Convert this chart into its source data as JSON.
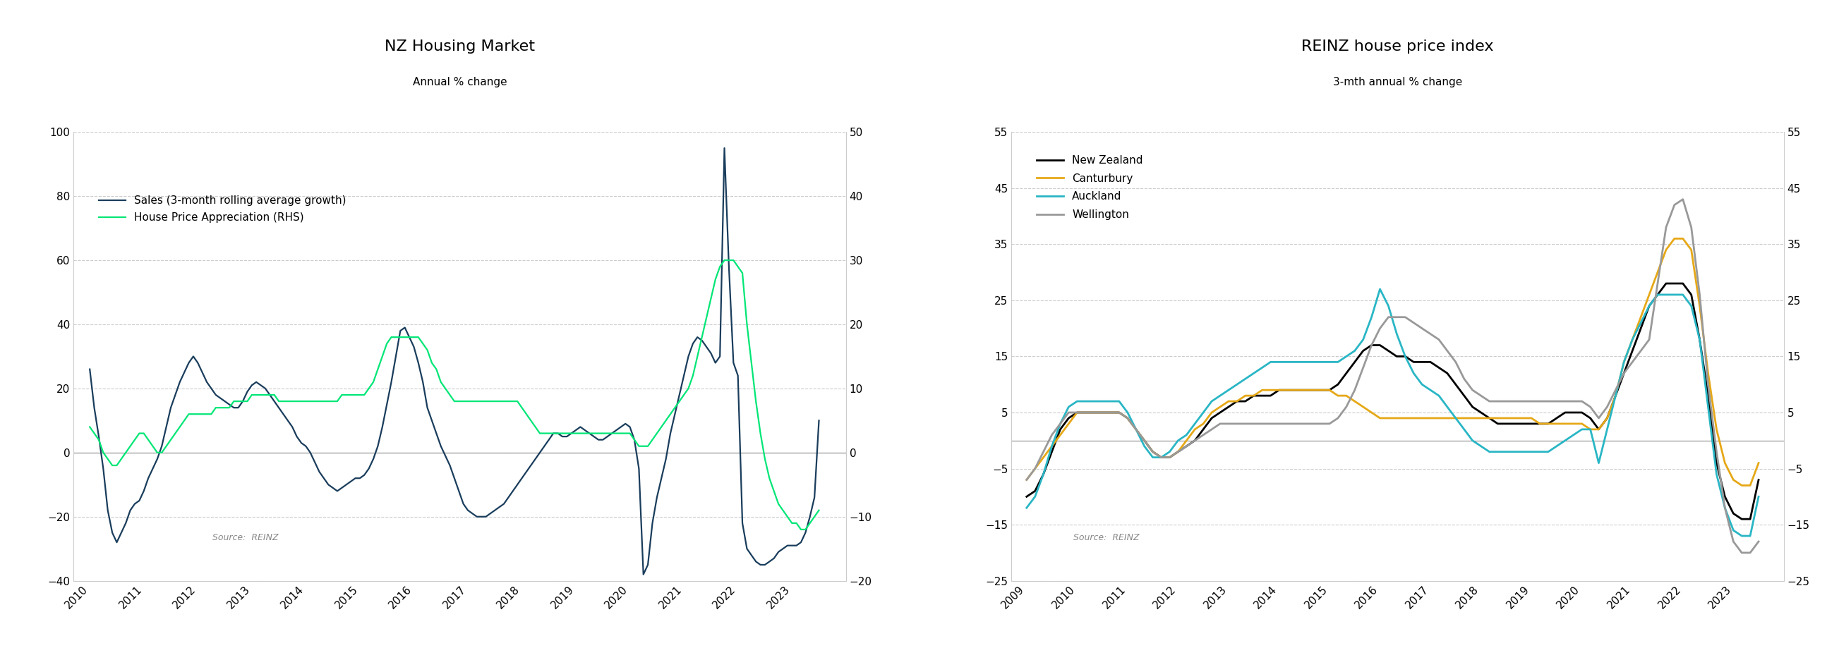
{
  "chart1": {
    "title": "NZ Housing Market",
    "subtitle": "Annual % change",
    "left_ylim": [
      -40,
      100
    ],
    "right_ylim": [
      -20,
      50
    ],
    "left_yticks": [
      -40,
      -20,
      0,
      20,
      40,
      60,
      80,
      100
    ],
    "right_yticks": [
      -20,
      -10,
      0,
      10,
      20,
      30,
      40,
      50
    ],
    "sales_color": "#1a3d5c",
    "hpa_color": "#00e676",
    "legend": [
      "Sales (3-month rolling average growth)",
      "House Price Appreciation (RHS)"
    ],
    "source": "Source:  REINZ",
    "sales_x": [
      2010.0,
      2010.083,
      2010.167,
      2010.25,
      2010.333,
      2010.417,
      2010.5,
      2010.583,
      2010.667,
      2010.75,
      2010.833,
      2010.917,
      2011.0,
      2011.083,
      2011.167,
      2011.25,
      2011.333,
      2011.417,
      2011.5,
      2011.583,
      2011.667,
      2011.75,
      2011.833,
      2011.917,
      2012.0,
      2012.083,
      2012.167,
      2012.25,
      2012.333,
      2012.417,
      2012.5,
      2012.583,
      2012.667,
      2012.75,
      2012.833,
      2012.917,
      2013.0,
      2013.083,
      2013.167,
      2013.25,
      2013.333,
      2013.417,
      2013.5,
      2013.583,
      2013.667,
      2013.75,
      2013.833,
      2013.917,
      2014.0,
      2014.083,
      2014.167,
      2014.25,
      2014.333,
      2014.417,
      2014.5,
      2014.583,
      2014.667,
      2014.75,
      2014.833,
      2014.917,
      2015.0,
      2015.083,
      2015.167,
      2015.25,
      2015.333,
      2015.417,
      2015.5,
      2015.583,
      2015.667,
      2015.75,
      2015.833,
      2015.917,
      2016.0,
      2016.083,
      2016.167,
      2016.25,
      2016.333,
      2016.417,
      2016.5,
      2016.583,
      2016.667,
      2016.75,
      2016.833,
      2016.917,
      2017.0,
      2017.083,
      2017.167,
      2017.25,
      2017.333,
      2017.417,
      2017.5,
      2017.583,
      2017.667,
      2017.75,
      2017.833,
      2017.917,
      2018.0,
      2018.083,
      2018.167,
      2018.25,
      2018.333,
      2018.417,
      2018.5,
      2018.583,
      2018.667,
      2018.75,
      2018.833,
      2018.917,
      2019.0,
      2019.083,
      2019.167,
      2019.25,
      2019.333,
      2019.417,
      2019.5,
      2019.583,
      2019.667,
      2019.75,
      2019.833,
      2019.917,
      2020.0,
      2020.083,
      2020.167,
      2020.25,
      2020.333,
      2020.417,
      2020.5,
      2020.583,
      2020.667,
      2020.75,
      2020.833,
      2020.917,
      2021.0,
      2021.083,
      2021.167,
      2021.25,
      2021.333,
      2021.417,
      2021.5,
      2021.583,
      2021.667,
      2021.75,
      2021.833,
      2021.917,
      2022.0,
      2022.083,
      2022.167,
      2022.25,
      2022.333,
      2022.417,
      2022.5,
      2022.583,
      2022.667,
      2022.75,
      2022.833,
      2022.917,
      2023.0,
      2023.083,
      2023.167,
      2023.25,
      2023.333,
      2023.417,
      2023.5
    ],
    "sales_y": [
      26,
      14,
      5,
      -5,
      -18,
      -25,
      -28,
      -25,
      -22,
      -18,
      -16,
      -15,
      -12,
      -8,
      -5,
      -2,
      2,
      8,
      14,
      18,
      22,
      25,
      28,
      30,
      28,
      25,
      22,
      20,
      18,
      17,
      16,
      15,
      14,
      14,
      16,
      19,
      21,
      22,
      21,
      20,
      18,
      16,
      14,
      12,
      10,
      8,
      5,
      3,
      2,
      0,
      -3,
      -6,
      -8,
      -10,
      -11,
      -12,
      -11,
      -10,
      -9,
      -8,
      -8,
      -7,
      -5,
      -2,
      2,
      8,
      15,
      22,
      30,
      38,
      39,
      36,
      33,
      28,
      22,
      14,
      10,
      6,
      2,
      -1,
      -4,
      -8,
      -12,
      -16,
      -18,
      -19,
      -20,
      -20,
      -20,
      -19,
      -18,
      -17,
      -16,
      -14,
      -12,
      -10,
      -8,
      -6,
      -4,
      -2,
      0,
      2,
      4,
      6,
      6,
      5,
      5,
      6,
      7,
      8,
      7,
      6,
      5,
      4,
      4,
      5,
      6,
      7,
      8,
      9,
      8,
      4,
      -5,
      -38,
      -35,
      -22,
      -14,
      -8,
      -2,
      6,
      12,
      18,
      24,
      30,
      34,
      36,
      35,
      33,
      31,
      28,
      30,
      95,
      58,
      28,
      24,
      -22,
      -30,
      -32,
      -34,
      -35,
      -35,
      -34,
      -33,
      -31,
      -30,
      -29,
      -29,
      -29,
      -28,
      -25,
      -20,
      -14,
      10
    ],
    "hpa_x": [
      2010.0,
      2010.083,
      2010.167,
      2010.25,
      2010.333,
      2010.417,
      2010.5,
      2010.583,
      2010.667,
      2010.75,
      2010.833,
      2010.917,
      2011.0,
      2011.083,
      2011.167,
      2011.25,
      2011.333,
      2011.417,
      2011.5,
      2011.583,
      2011.667,
      2011.75,
      2011.833,
      2011.917,
      2012.0,
      2012.083,
      2012.167,
      2012.25,
      2012.333,
      2012.417,
      2012.5,
      2012.583,
      2012.667,
      2012.75,
      2012.833,
      2012.917,
      2013.0,
      2013.083,
      2013.167,
      2013.25,
      2013.333,
      2013.417,
      2013.5,
      2013.583,
      2013.667,
      2013.75,
      2013.833,
      2013.917,
      2014.0,
      2014.083,
      2014.167,
      2014.25,
      2014.333,
      2014.417,
      2014.5,
      2014.583,
      2014.667,
      2014.75,
      2014.833,
      2014.917,
      2015.0,
      2015.083,
      2015.167,
      2015.25,
      2015.333,
      2015.417,
      2015.5,
      2015.583,
      2015.667,
      2015.75,
      2015.833,
      2015.917,
      2016.0,
      2016.083,
      2016.167,
      2016.25,
      2016.333,
      2016.417,
      2016.5,
      2016.583,
      2016.667,
      2016.75,
      2016.833,
      2016.917,
      2017.0,
      2017.083,
      2017.167,
      2017.25,
      2017.333,
      2017.417,
      2017.5,
      2017.583,
      2017.667,
      2017.75,
      2017.833,
      2017.917,
      2018.0,
      2018.083,
      2018.167,
      2018.25,
      2018.333,
      2018.417,
      2018.5,
      2018.583,
      2018.667,
      2018.75,
      2018.833,
      2018.917,
      2019.0,
      2019.083,
      2019.167,
      2019.25,
      2019.333,
      2019.417,
      2019.5,
      2019.583,
      2019.667,
      2019.75,
      2019.833,
      2019.917,
      2020.0,
      2020.083,
      2020.167,
      2020.25,
      2020.333,
      2020.417,
      2020.5,
      2020.583,
      2020.667,
      2020.75,
      2020.833,
      2020.917,
      2021.0,
      2021.083,
      2021.167,
      2021.25,
      2021.333,
      2021.417,
      2021.5,
      2021.583,
      2021.667,
      2021.75,
      2021.833,
      2021.917,
      2022.0,
      2022.083,
      2022.167,
      2022.25,
      2022.333,
      2022.417,
      2022.5,
      2022.583,
      2022.667,
      2022.75,
      2022.833,
      2022.917,
      2023.0,
      2023.083,
      2023.167,
      2023.25,
      2023.333,
      2023.417,
      2023.5
    ],
    "hpa_y": [
      4,
      3,
      2,
      0,
      -1,
      -2,
      -2,
      -1,
      0,
      1,
      2,
      3,
      3,
      2,
      1,
      0,
      0,
      1,
      2,
      3,
      4,
      5,
      6,
      6,
      6,
      6,
      6,
      6,
      7,
      7,
      7,
      7,
      8,
      8,
      8,
      8,
      9,
      9,
      9,
      9,
      9,
      9,
      8,
      8,
      8,
      8,
      8,
      8,
      8,
      8,
      8,
      8,
      8,
      8,
      8,
      8,
      9,
      9,
      9,
      9,
      9,
      9,
      10,
      11,
      13,
      15,
      17,
      18,
      18,
      18,
      18,
      18,
      18,
      18,
      17,
      16,
      14,
      13,
      11,
      10,
      9,
      8,
      8,
      8,
      8,
      8,
      8,
      8,
      8,
      8,
      8,
      8,
      8,
      8,
      8,
      8,
      7,
      6,
      5,
      4,
      3,
      3,
      3,
      3,
      3,
      3,
      3,
      3,
      3,
      3,
      3,
      3,
      3,
      3,
      3,
      3,
      3,
      3,
      3,
      3,
      3,
      2,
      1,
      1,
      1,
      2,
      3,
      4,
      5,
      6,
      7,
      8,
      9,
      10,
      12,
      15,
      18,
      21,
      24,
      27,
      29,
      30,
      30,
      30,
      29,
      28,
      20,
      14,
      8,
      3,
      -1,
      -4,
      -6,
      -8,
      -9,
      -10,
      -11,
      -11,
      -12,
      -12,
      -11,
      -10,
      -9
    ]
  },
  "chart2": {
    "title": "REINZ house price index",
    "subtitle": "3-mth annual % change",
    "ylim": [
      -25,
      55
    ],
    "yticks": [
      -25,
      -15,
      -5,
      5,
      15,
      25,
      35,
      45,
      55
    ],
    "nz_color": "#000000",
    "cant_color": "#e6a817",
    "auckland_color": "#29b6c5",
    "welly_color": "#999999",
    "legend": [
      "New Zealand",
      "Canturbury",
      "Auckland",
      "Wellington"
    ],
    "source": "Source:  REINZ",
    "nz_x": [
      2009.0,
      2009.167,
      2009.333,
      2009.5,
      2009.667,
      2009.833,
      2010.0,
      2010.167,
      2010.333,
      2010.5,
      2010.667,
      2010.833,
      2011.0,
      2011.167,
      2011.333,
      2011.5,
      2011.667,
      2011.833,
      2012.0,
      2012.167,
      2012.333,
      2012.5,
      2012.667,
      2012.833,
      2013.0,
      2013.167,
      2013.333,
      2013.5,
      2013.667,
      2013.833,
      2014.0,
      2014.167,
      2014.333,
      2014.5,
      2014.667,
      2014.833,
      2015.0,
      2015.167,
      2015.333,
      2015.5,
      2015.667,
      2015.833,
      2016.0,
      2016.167,
      2016.333,
      2016.5,
      2016.667,
      2016.833,
      2017.0,
      2017.167,
      2017.333,
      2017.5,
      2017.667,
      2017.833,
      2018.0,
      2018.167,
      2018.333,
      2018.5,
      2018.667,
      2018.833,
      2019.0,
      2019.167,
      2019.333,
      2019.5,
      2019.667,
      2019.833,
      2020.0,
      2020.167,
      2020.333,
      2020.5,
      2020.667,
      2020.833,
      2021.0,
      2021.167,
      2021.333,
      2021.5,
      2021.667,
      2021.833,
      2022.0,
      2022.167,
      2022.333,
      2022.5,
      2022.667,
      2022.833,
      2023.0,
      2023.167,
      2023.333,
      2023.5
    ],
    "nz_y": [
      -10,
      -9,
      -6,
      -2,
      2,
      4,
      5,
      5,
      5,
      5,
      5,
      5,
      4,
      2,
      0,
      -2,
      -3,
      -3,
      -2,
      -1,
      0,
      2,
      4,
      5,
      6,
      7,
      7,
      8,
      8,
      8,
      9,
      9,
      9,
      9,
      9,
      9,
      9,
      10,
      12,
      14,
      16,
      17,
      17,
      16,
      15,
      15,
      14,
      14,
      14,
      13,
      12,
      10,
      8,
      6,
      5,
      4,
      3,
      3,
      3,
      3,
      3,
      3,
      3,
      4,
      5,
      5,
      5,
      4,
      2,
      4,
      8,
      12,
      16,
      20,
      24,
      26,
      28,
      28,
      28,
      26,
      18,
      8,
      -4,
      -10,
      -13,
      -14,
      -14,
      -7
    ],
    "cant_x": [
      2009.0,
      2009.167,
      2009.333,
      2009.5,
      2009.667,
      2009.833,
      2010.0,
      2010.167,
      2010.333,
      2010.5,
      2010.667,
      2010.833,
      2011.0,
      2011.167,
      2011.333,
      2011.5,
      2011.667,
      2011.833,
      2012.0,
      2012.167,
      2012.333,
      2012.5,
      2012.667,
      2012.833,
      2013.0,
      2013.167,
      2013.333,
      2013.5,
      2013.667,
      2013.833,
      2014.0,
      2014.167,
      2014.333,
      2014.5,
      2014.667,
      2014.833,
      2015.0,
      2015.167,
      2015.333,
      2015.5,
      2015.667,
      2015.833,
      2016.0,
      2016.167,
      2016.333,
      2016.5,
      2016.667,
      2016.833,
      2017.0,
      2017.167,
      2017.333,
      2017.5,
      2017.667,
      2017.833,
      2018.0,
      2018.167,
      2018.333,
      2018.5,
      2018.667,
      2018.833,
      2019.0,
      2019.167,
      2019.333,
      2019.5,
      2019.667,
      2019.833,
      2020.0,
      2020.167,
      2020.333,
      2020.5,
      2020.667,
      2020.833,
      2021.0,
      2021.167,
      2021.333,
      2021.5,
      2021.667,
      2021.833,
      2022.0,
      2022.167,
      2022.333,
      2022.5,
      2022.667,
      2022.833,
      2023.0,
      2023.167,
      2023.333,
      2023.5
    ],
    "cant_y": [
      -7,
      -5,
      -3,
      -1,
      1,
      3,
      5,
      5,
      5,
      5,
      5,
      5,
      4,
      2,
      0,
      -2,
      -3,
      -3,
      -2,
      0,
      2,
      3,
      5,
      6,
      7,
      7,
      8,
      8,
      9,
      9,
      9,
      9,
      9,
      9,
      9,
      9,
      9,
      8,
      8,
      7,
      6,
      5,
      4,
      4,
      4,
      4,
      4,
      4,
      4,
      4,
      4,
      4,
      4,
      4,
      4,
      4,
      4,
      4,
      4,
      4,
      4,
      3,
      3,
      3,
      3,
      3,
      3,
      2,
      2,
      4,
      8,
      14,
      18,
      22,
      26,
      30,
      34,
      36,
      36,
      34,
      24,
      12,
      2,
      -4,
      -7,
      -8,
      -8,
      -4
    ],
    "auckland_x": [
      2009.0,
      2009.167,
      2009.333,
      2009.5,
      2009.667,
      2009.833,
      2010.0,
      2010.167,
      2010.333,
      2010.5,
      2010.667,
      2010.833,
      2011.0,
      2011.167,
      2011.333,
      2011.5,
      2011.667,
      2011.833,
      2012.0,
      2012.167,
      2012.333,
      2012.5,
      2012.667,
      2012.833,
      2013.0,
      2013.167,
      2013.333,
      2013.5,
      2013.667,
      2013.833,
      2014.0,
      2014.167,
      2014.333,
      2014.5,
      2014.667,
      2014.833,
      2015.0,
      2015.167,
      2015.333,
      2015.5,
      2015.667,
      2015.833,
      2016.0,
      2016.167,
      2016.333,
      2016.5,
      2016.667,
      2016.833,
      2017.0,
      2017.167,
      2017.333,
      2017.5,
      2017.667,
      2017.833,
      2018.0,
      2018.167,
      2018.333,
      2018.5,
      2018.667,
      2018.833,
      2019.0,
      2019.167,
      2019.333,
      2019.5,
      2019.667,
      2019.833,
      2020.0,
      2020.167,
      2020.333,
      2020.5,
      2020.667,
      2020.833,
      2021.0,
      2021.167,
      2021.333,
      2021.5,
      2021.667,
      2021.833,
      2022.0,
      2022.167,
      2022.333,
      2022.5,
      2022.667,
      2022.833,
      2023.0,
      2023.167,
      2023.333,
      2023.5
    ],
    "auckland_y": [
      -12,
      -10,
      -6,
      -1,
      3,
      6,
      7,
      7,
      7,
      7,
      7,
      7,
      5,
      2,
      -1,
      -3,
      -3,
      -2,
      0,
      1,
      3,
      5,
      7,
      8,
      9,
      10,
      11,
      12,
      13,
      14,
      14,
      14,
      14,
      14,
      14,
      14,
      14,
      14,
      15,
      16,
      18,
      22,
      27,
      24,
      19,
      15,
      12,
      10,
      9,
      8,
      6,
      4,
      2,
      0,
      -1,
      -2,
      -2,
      -2,
      -2,
      -2,
      -2,
      -2,
      -2,
      -1,
      0,
      1,
      2,
      2,
      -4,
      2,
      8,
      14,
      18,
      21,
      24,
      26,
      26,
      26,
      26,
      24,
      18,
      6,
      -6,
      -12,
      -16,
      -17,
      -17,
      -10
    ],
    "welly_x": [
      2009.0,
      2009.167,
      2009.333,
      2009.5,
      2009.667,
      2009.833,
      2010.0,
      2010.167,
      2010.333,
      2010.5,
      2010.667,
      2010.833,
      2011.0,
      2011.167,
      2011.333,
      2011.5,
      2011.667,
      2011.833,
      2012.0,
      2012.167,
      2012.333,
      2012.5,
      2012.667,
      2012.833,
      2013.0,
      2013.167,
      2013.333,
      2013.5,
      2013.667,
      2013.833,
      2014.0,
      2014.167,
      2014.333,
      2014.5,
      2014.667,
      2014.833,
      2015.0,
      2015.167,
      2015.333,
      2015.5,
      2015.667,
      2015.833,
      2016.0,
      2016.167,
      2016.333,
      2016.5,
      2016.667,
      2016.833,
      2017.0,
      2017.167,
      2017.333,
      2017.5,
      2017.667,
      2017.833,
      2018.0,
      2018.167,
      2018.333,
      2018.5,
      2018.667,
      2018.833,
      2019.0,
      2019.167,
      2019.333,
      2019.5,
      2019.667,
      2019.833,
      2020.0,
      2020.167,
      2020.333,
      2020.5,
      2020.667,
      2020.833,
      2021.0,
      2021.167,
      2021.333,
      2021.5,
      2021.667,
      2021.833,
      2022.0,
      2022.167,
      2022.333,
      2022.5,
      2022.667,
      2022.833,
      2023.0,
      2023.167,
      2023.333,
      2023.5
    ],
    "welly_y": [
      -7,
      -5,
      -2,
      1,
      3,
      5,
      5,
      5,
      5,
      5,
      5,
      5,
      4,
      2,
      0,
      -2,
      -3,
      -3,
      -2,
      -1,
      0,
      1,
      2,
      3,
      3,
      3,
      3,
      3,
      3,
      3,
      3,
      3,
      3,
      3,
      3,
      3,
      3,
      4,
      6,
      9,
      13,
      17,
      20,
      22,
      22,
      22,
      21,
      20,
      19,
      18,
      16,
      14,
      11,
      9,
      8,
      7,
      7,
      7,
      7,
      7,
      7,
      7,
      7,
      7,
      7,
      7,
      7,
      6,
      4,
      6,
      9,
      12,
      14,
      16,
      18,
      28,
      38,
      42,
      43,
      38,
      26,
      10,
      -2,
      -12,
      -18,
      -20,
      -20,
      -18
    ]
  }
}
